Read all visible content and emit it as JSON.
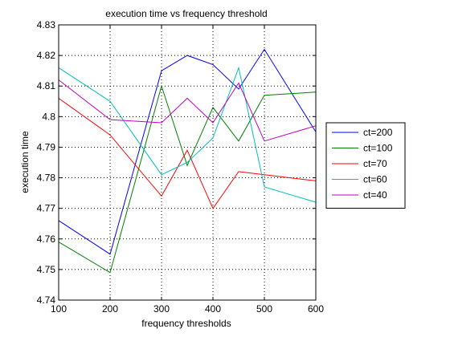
{
  "chart_data": {
    "type": "line",
    "title": "execution time vs frequency threshold",
    "xlabel": "frequency thresholds",
    "ylabel": "execution time",
    "xlim": [
      100,
      600
    ],
    "ylim": [
      4.74,
      4.83
    ],
    "xticks": [
      100,
      200,
      300,
      400,
      500,
      600
    ],
    "xtick_labels": [
      "100",
      "200",
      "300",
      "400",
      "500",
      "600"
    ],
    "yticks": [
      4.74,
      4.75,
      4.76,
      4.77,
      4.78,
      4.79,
      4.8,
      4.81,
      4.82,
      4.83
    ],
    "ytick_labels": [
      "4.74",
      "4.75",
      "4.76",
      "4.77",
      "4.78",
      "4.79",
      "4.8",
      "4.81",
      "4.82",
      "4.83"
    ],
    "grid": true,
    "legend_position": "right-outside",
    "x": [
      100,
      200,
      300,
      350,
      400,
      450,
      500,
      600
    ],
    "series": [
      {
        "name": "ct=200",
        "color": "#0000ff",
        "values": [
          4.766,
          4.755,
          4.815,
          4.82,
          4.817,
          4.809,
          4.822,
          4.795
        ]
      },
      {
        "name": "ct=100",
        "color": "#008000",
        "values": [
          4.759,
          4.749,
          4.81,
          4.784,
          4.803,
          4.792,
          4.807,
          4.808
        ]
      },
      {
        "name": "ct=70",
        "color": "#ff0000",
        "values": [
          4.806,
          4.794,
          4.774,
          4.789,
          4.77,
          4.782,
          4.781,
          4.779
        ]
      },
      {
        "name": "ct=60",
        "color": "#00bfbf",
        "values": [
          4.816,
          4.805,
          4.781,
          4.785,
          4.793,
          4.816,
          4.777,
          4.772
        ]
      },
      {
        "name": "ct=40",
        "color": "#bf00bf",
        "values": [
          4.812,
          4.799,
          4.798,
          4.806,
          4.798,
          4.811,
          4.792,
          4.797
        ]
      }
    ]
  }
}
